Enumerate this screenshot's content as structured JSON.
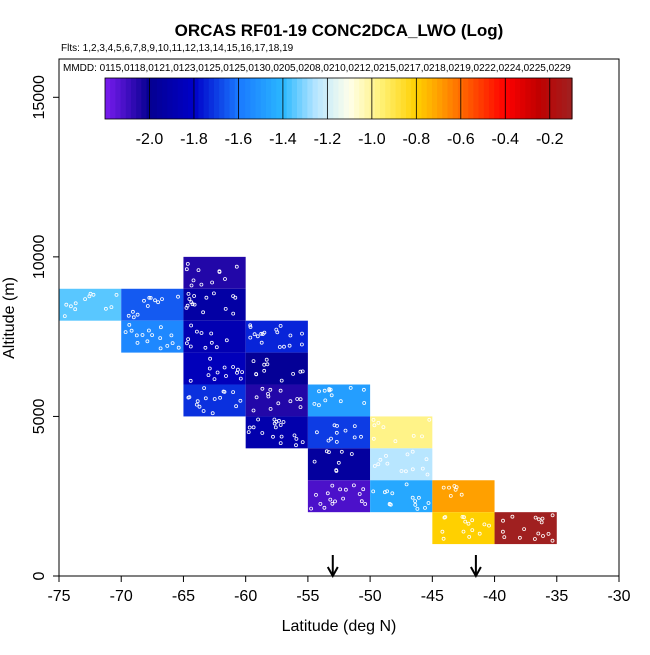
{
  "chart_data": {
    "type": "heatmap",
    "title": "ORCAS RF01-19 CONC2DCA_LWO (Log)",
    "flights_line": "Flts: 1,2,3,4,5,6,7,8,9,10,11,12,13,14,15,16,17,18,19",
    "dates_line": "MMDD: 0115,0118,0121,0123,0125,0125,0130,0205,0208,0210,0212,0215,0217,0218,0219,0222,0224,0225,0229",
    "xlabel": "Latitude (deg N)",
    "ylabel": "Altitude (m)",
    "xlim": [
      -75,
      -30
    ],
    "ylim": [
      0,
      16200
    ],
    "x_ticks": [
      -75,
      -70,
      -65,
      -60,
      -55,
      -50,
      -45,
      -40,
      -35,
      -30
    ],
    "x_tick_labels": [
      "-75",
      "-70",
      "-65",
      "-60",
      "-55",
      "-50",
      "-45",
      "-40",
      "-35",
      "-30"
    ],
    "y_ticks": [
      0,
      5000,
      10000,
      15000
    ],
    "y_tick_labels": [
      "0",
      "5000",
      "10000",
      "15000"
    ],
    "colorbar": {
      "range": [
        -2.2,
        -0.1
      ],
      "ticks": [
        -2.0,
        -1.8,
        -1.6,
        -1.4,
        -1.2,
        -1.0,
        -0.8,
        -0.6,
        -0.4,
        -0.2
      ],
      "tick_labels": [
        "-2.0",
        "-1.8",
        "-1.6",
        "-1.4",
        "-1.2",
        "-1.0",
        "-0.8",
        "-0.6",
        "-0.4",
        "-0.2"
      ],
      "stops": [
        {
          "value": -2.2,
          "color": "#7b1cf0"
        },
        {
          "value": -2.0,
          "color": "#050090"
        },
        {
          "value": -1.8,
          "color": "#0000c8"
        },
        {
          "value": -1.6,
          "color": "#1a78ff"
        },
        {
          "value": -1.4,
          "color": "#2ab8ff"
        },
        {
          "value": -1.25,
          "color": "#b8e6ff"
        },
        {
          "value": -1.1,
          "color": "#ffffea"
        },
        {
          "value": -0.95,
          "color": "#fff070"
        },
        {
          "value": -0.8,
          "color": "#ffd000"
        },
        {
          "value": -0.7,
          "color": "#ffa000"
        },
        {
          "value": -0.55,
          "color": "#ff5000"
        },
        {
          "value": -0.4,
          "color": "#ff0000"
        },
        {
          "value": -0.25,
          "color": "#c00000"
        },
        {
          "value": -0.1,
          "color": "#a02020"
        }
      ]
    },
    "cells": [
      {
        "lat": [
          -75,
          -70
        ],
        "alt": [
          8000,
          9000
        ],
        "value": -1.35
      },
      {
        "lat": [
          -70,
          -65
        ],
        "alt": [
          8000,
          9000
        ],
        "value": -1.65
      },
      {
        "lat": [
          -70,
          -65
        ],
        "alt": [
          7000,
          8000
        ],
        "value": -1.55
      },
      {
        "lat": [
          -65,
          -60
        ],
        "alt": [
          9000,
          10000
        ],
        "value": -2.05
      },
      {
        "lat": [
          -65,
          -60
        ],
        "alt": [
          8000,
          9000
        ],
        "value": -1.93
      },
      {
        "lat": [
          -65,
          -60
        ],
        "alt": [
          7000,
          8000
        ],
        "value": -1.88
      },
      {
        "lat": [
          -65,
          -60
        ],
        "alt": [
          6000,
          7000
        ],
        "value": -1.85
      },
      {
        "lat": [
          -65,
          -60
        ],
        "alt": [
          5000,
          6000
        ],
        "value": -1.72
      },
      {
        "lat": [
          -60,
          -55
        ],
        "alt": [
          7000,
          8000
        ],
        "value": -1.74
      },
      {
        "lat": [
          -60,
          -55
        ],
        "alt": [
          6000,
          7000
        ],
        "value": -1.98
      },
      {
        "lat": [
          -60,
          -55
        ],
        "alt": [
          5000,
          6000
        ],
        "value": -2.05
      },
      {
        "lat": [
          -60,
          -55
        ],
        "alt": [
          4000,
          5000
        ],
        "value": -1.9
      },
      {
        "lat": [
          -55,
          -50
        ],
        "alt": [
          5000,
          6000
        ],
        "value": -1.48
      },
      {
        "lat": [
          -55,
          -50
        ],
        "alt": [
          4000,
          5000
        ],
        "value": -1.7
      },
      {
        "lat": [
          -55,
          -50
        ],
        "alt": [
          3000,
          4000
        ],
        "value": -1.95
      },
      {
        "lat": [
          -55,
          -50
        ],
        "alt": [
          2000,
          3000
        ],
        "value": -2.12
      },
      {
        "lat": [
          -50,
          -45
        ],
        "alt": [
          4000,
          5000
        ],
        "value": -0.98
      },
      {
        "lat": [
          -50,
          -45
        ],
        "alt": [
          3000,
          4000
        ],
        "value": -1.25
      },
      {
        "lat": [
          -50,
          -45
        ],
        "alt": [
          2000,
          3000
        ],
        "value": -1.45
      },
      {
        "lat": [
          -45,
          -40
        ],
        "alt": [
          2000,
          3000
        ],
        "value": -0.7
      },
      {
        "lat": [
          -45,
          -40
        ],
        "alt": [
          1000,
          2000
        ],
        "value": -0.8
      },
      {
        "lat": [
          -40,
          -35
        ],
        "alt": [
          1000,
          2000
        ],
        "value": -0.1
      }
    ],
    "arrows_lat": [
      -53,
      -41.5
    ]
  }
}
